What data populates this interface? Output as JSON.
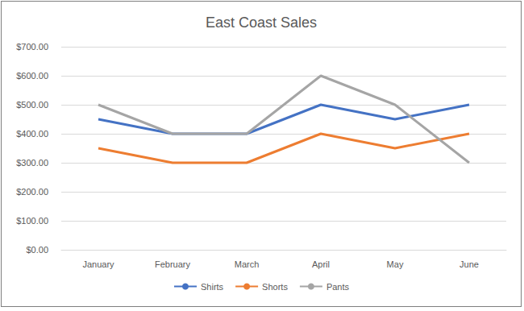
{
  "chart_data": {
    "type": "line",
    "title": "East Coast Sales",
    "categories": [
      "January",
      "February",
      "March",
      "April",
      "May",
      "June"
    ],
    "series": [
      {
        "name": "Shirts",
        "color": "#4472c4",
        "values": [
          450,
          400,
          400,
          500,
          450,
          500
        ]
      },
      {
        "name": "Shorts",
        "color": "#ed7d31",
        "values": [
          350,
          300,
          300,
          400,
          350,
          400
        ]
      },
      {
        "name": "Pants",
        "color": "#a5a5a5",
        "values": [
          500,
          400,
          400,
          600,
          500,
          300
        ]
      }
    ],
    "ylim": [
      0,
      700
    ],
    "yticks": [
      {
        "value": 0,
        "label": "$0.00"
      },
      {
        "value": 100,
        "label": "$100.00"
      },
      {
        "value": 200,
        "label": "$200.00"
      },
      {
        "value": 300,
        "label": "$300.00"
      },
      {
        "value": 400,
        "label": "$400.00"
      },
      {
        "value": 500,
        "label": "$500.00"
      },
      {
        "value": 600,
        "label": "$600.00"
      },
      {
        "value": 700,
        "label": "$700.00"
      }
    ],
    "grid": true,
    "legend": "bottom"
  }
}
